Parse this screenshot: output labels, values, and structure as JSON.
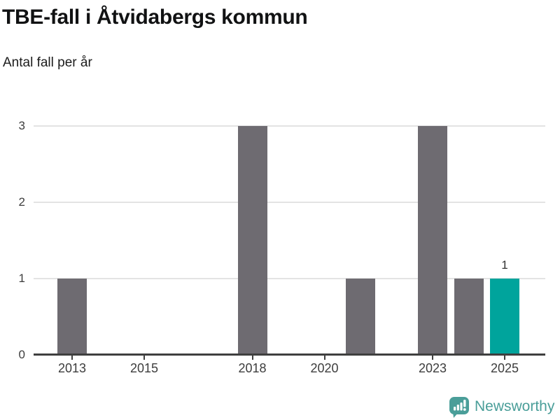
{
  "chart_data": {
    "type": "bar",
    "title": "TBE-fall i Åtvidabergs kommun",
    "subtitle": "Antal fall per år",
    "x": [
      2013,
      2014,
      2015,
      2016,
      2017,
      2018,
      2019,
      2020,
      2021,
      2022,
      2023,
      2024,
      2025
    ],
    "values": [
      1,
      0,
      0,
      0,
      0,
      3,
      0,
      0,
      1,
      0,
      3,
      1,
      1
    ],
    "xticks": [
      2013,
      2015,
      2018,
      2020,
      2023,
      2025
    ],
    "yticks": [
      0,
      1,
      2,
      3
    ],
    "ylim": [
      0,
      3
    ],
    "grid": "horizontal",
    "legend": "none",
    "highlight_x": 2025,
    "annotations": [
      {
        "x": 2025,
        "y": 1,
        "label": "1"
      }
    ],
    "colors": {
      "bar": "#6e6b71",
      "highlight": "#00a49c",
      "grid": "#e3e3e3",
      "axis": "#3f3f3f",
      "tick_label": "#3d3d3d",
      "annotation": "#333333"
    }
  },
  "footer": {
    "brand": "Newsworthy",
    "brand_color": "#4a9e99",
    "logo_icon": "bar-chart-speech-bubble"
  }
}
